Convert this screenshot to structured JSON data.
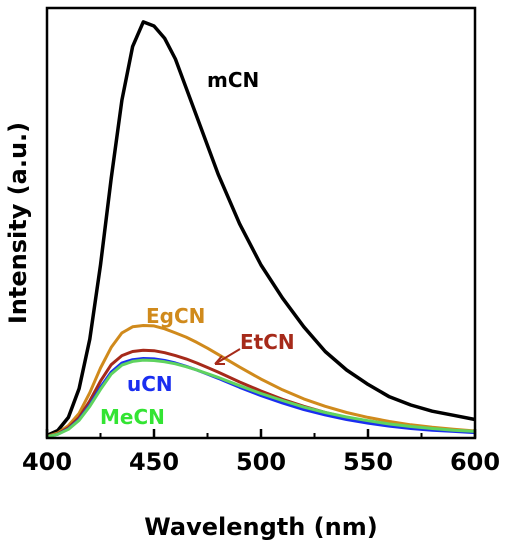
{
  "chart_data": {
    "type": "line",
    "xlabel": "Wavelength (nm)",
    "ylabel": "Intensity (a.u.)",
    "xlim": [
      400,
      600
    ],
    "xticks": [
      400,
      450,
      500,
      550,
      600
    ],
    "ylim": [
      0,
      1.0
    ],
    "yticks_shown": false,
    "grid": false,
    "legend": "inline labels",
    "x": [
      400,
      405,
      410,
      415,
      420,
      425,
      430,
      435,
      440,
      445,
      450,
      455,
      460,
      465,
      470,
      475,
      480,
      490,
      500,
      510,
      520,
      530,
      540,
      550,
      560,
      570,
      580,
      590,
      600
    ],
    "series": [
      {
        "name": "mCN",
        "color": "#000000",
        "label_color": "#000000",
        "values": [
          0.006,
          0.018,
          0.05,
          0.12,
          0.24,
          0.42,
          0.63,
          0.82,
          0.95,
          1.01,
          1.0,
          0.97,
          0.92,
          0.85,
          0.78,
          0.71,
          0.64,
          0.52,
          0.42,
          0.34,
          0.27,
          0.21,
          0.165,
          0.13,
          0.1,
          0.08,
          0.065,
          0.055,
          0.045
        ]
      },
      {
        "name": "EgCN",
        "color": "#d08a1c",
        "label_color": "#d08a1c",
        "values": [
          0.004,
          0.012,
          0.03,
          0.06,
          0.11,
          0.17,
          0.22,
          0.255,
          0.27,
          0.273,
          0.272,
          0.265,
          0.255,
          0.245,
          0.232,
          0.218,
          0.203,
          0.172,
          0.143,
          0.117,
          0.095,
          0.077,
          0.062,
          0.05,
          0.04,
          0.032,
          0.026,
          0.021,
          0.017
        ]
      },
      {
        "name": "EtCN",
        "color": "#a62a1a",
        "label_color": "#a62a1a",
        "values": [
          0.003,
          0.01,
          0.025,
          0.05,
          0.09,
          0.138,
          0.178,
          0.2,
          0.21,
          0.213,
          0.212,
          0.207,
          0.2,
          0.192,
          0.182,
          0.171,
          0.16,
          0.136,
          0.114,
          0.094,
          0.077,
          0.062,
          0.05,
          0.041,
          0.033,
          0.027,
          0.022,
          0.018,
          0.014
        ]
      },
      {
        "name": "uCN",
        "color": "#1a2ef0",
        "label_color": "#1a2ef0",
        "values": [
          0.003,
          0.009,
          0.022,
          0.045,
          0.08,
          0.123,
          0.16,
          0.182,
          0.19,
          0.193,
          0.192,
          0.188,
          0.182,
          0.174,
          0.165,
          0.155,
          0.145,
          0.123,
          0.103,
          0.085,
          0.069,
          0.056,
          0.045,
          0.036,
          0.029,
          0.023,
          0.019,
          0.016,
          0.013
        ]
      },
      {
        "name": "MeCN",
        "color": "#5fd35f",
        "label_color": "#33e433",
        "values": [
          0.003,
          0.009,
          0.021,
          0.043,
          0.077,
          0.118,
          0.155,
          0.177,
          0.186,
          0.189,
          0.188,
          0.185,
          0.18,
          0.173,
          0.165,
          0.156,
          0.147,
          0.127,
          0.108,
          0.091,
          0.075,
          0.062,
          0.051,
          0.042,
          0.034,
          0.028,
          0.023,
          0.019,
          0.016
        ]
      }
    ],
    "annotations": [
      {
        "text": "mCN",
        "series": "mCN"
      },
      {
        "text": "EgCN",
        "series": "EgCN"
      },
      {
        "text": "EtCN",
        "series": "EtCN",
        "arrow": true
      },
      {
        "text": "uCN",
        "series": "uCN"
      },
      {
        "text": "MeCN",
        "series": "MeCN"
      }
    ]
  }
}
